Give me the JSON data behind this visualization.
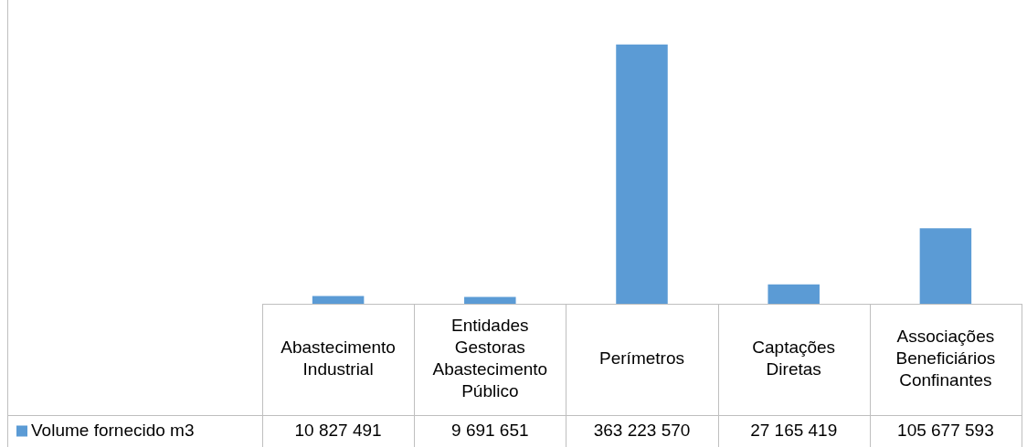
{
  "chart_data": {
    "type": "bar",
    "categories": [
      "Abastecimento Industrial",
      "Entidades Gestoras Abastecimento Público",
      "Perímetros",
      "Captações Diretas",
      "Associações Beneficiários Confinantes"
    ],
    "series": [
      {
        "name": "Volume fornecido m3",
        "color": "#5b9bd5",
        "values": [
          10827491,
          9691651,
          363223570,
          27165419,
          105677593
        ],
        "value_labels": [
          "10 827 491",
          "9 691 651",
          "363 223 570",
          "27 165 419",
          "105 677 593"
        ]
      }
    ],
    "legend": "bottom left",
    "grid": false,
    "tick_labels": "x"
  }
}
